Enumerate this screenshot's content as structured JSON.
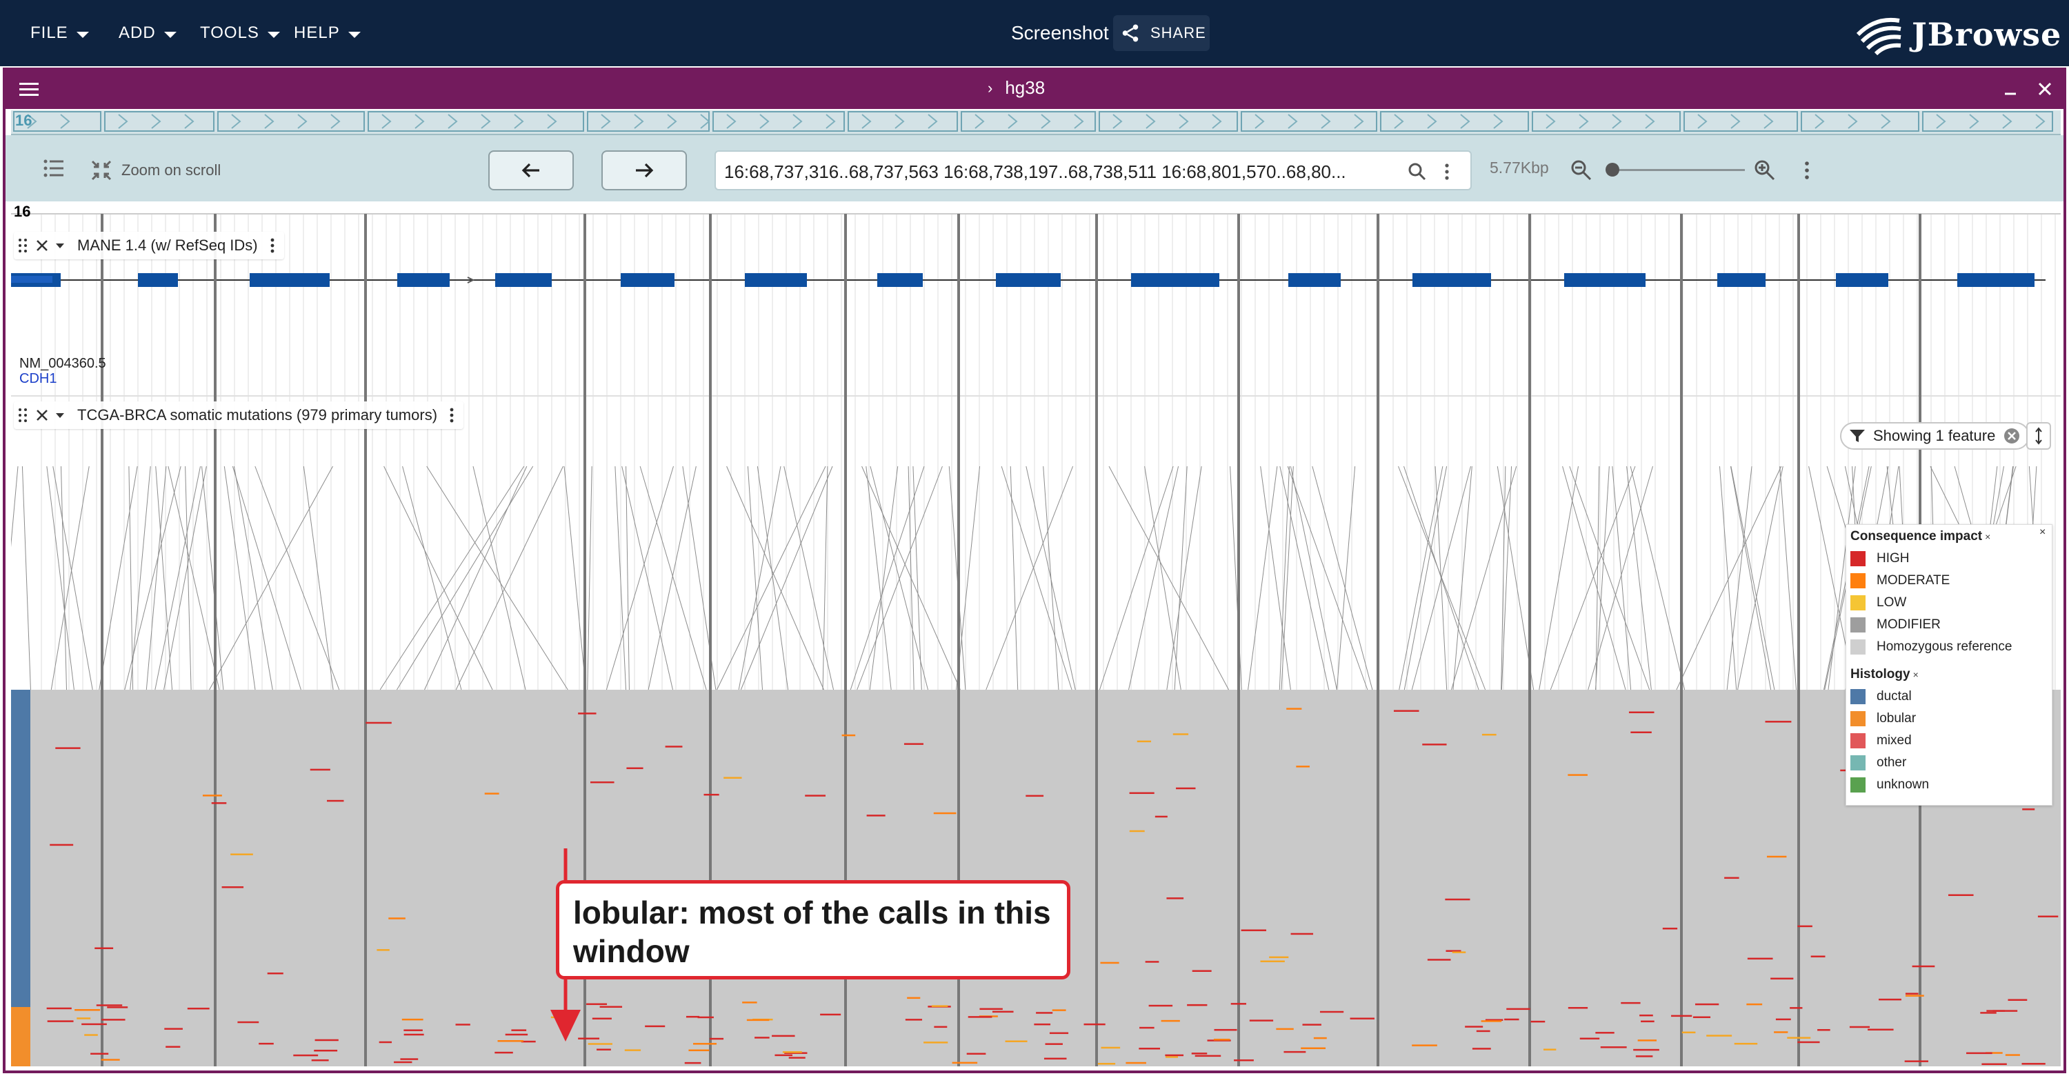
{
  "appbar": {
    "menus": [
      "FILE",
      "ADD",
      "TOOLS",
      "HELP"
    ],
    "session_name": "Screenshot",
    "share_label": "SHARE",
    "logo_text": "JBrowse"
  },
  "view": {
    "assembly": "hg38",
    "overview_chr": "16",
    "zoom_on_scroll_label": "Zoom on scroll",
    "locstring": "16:68,737,316..68,737,563 16:68,738,197..68,738,511 16:68,801,570..68,80...",
    "bp_per_view": "5.77Kbp",
    "chr_label": "16",
    "zoom_level": 0.02
  },
  "tracks": [
    {
      "label": "MANE 1.4 (w/ RefSeq IDs)",
      "transcript": "NM_004360.5",
      "gene": "CDH1",
      "filter_chip": "Showing 1 feature"
    },
    {
      "label": "TCGA-BRCA somatic mutations (979 primary tumors)"
    }
  ],
  "legend": {
    "impact_title": "Consequence impact",
    "impact": [
      {
        "label": "HIGH",
        "color": "#d62728"
      },
      {
        "label": "MODERATE",
        "color": "#ff7f0e"
      },
      {
        "label": "LOW",
        "color": "#f5c534"
      },
      {
        "label": "MODIFIER",
        "color": "#9e9e9e"
      },
      {
        "label": "Homozygous reference",
        "color": "#cfcfcf"
      }
    ],
    "histology_title": "Histology",
    "histology": [
      {
        "label": "ductal",
        "color": "#4e79a7"
      },
      {
        "label": "lobular",
        "color": "#f28e2b"
      },
      {
        "label": "mixed",
        "color": "#e15759"
      },
      {
        "label": "other",
        "color": "#76b7b2"
      },
      {
        "label": "unknown",
        "color": "#59a14f"
      }
    ]
  },
  "annotation": {
    "text": "lobular: most of the calls in this window"
  },
  "colors": {
    "appbar": "#0e2340",
    "view_frame": "#731b5d",
    "exon": "#0d4fa0",
    "matrix_bg": "#c9c9c9",
    "callout_border": "#e0262f"
  }
}
